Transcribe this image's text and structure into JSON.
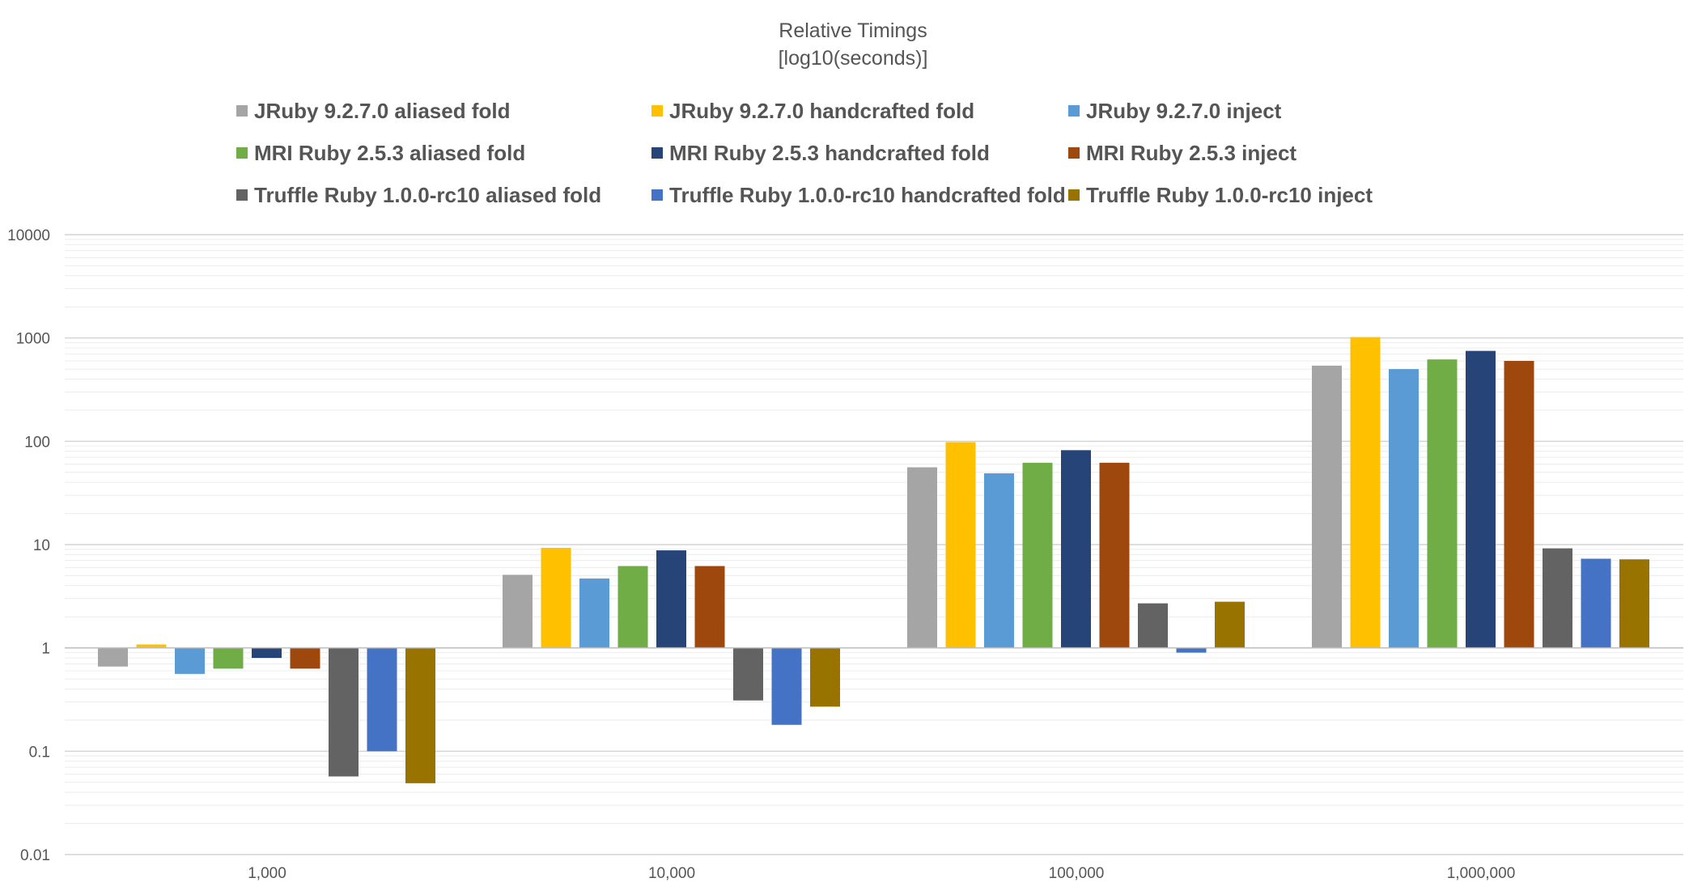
{
  "chart_data": {
    "type": "bar",
    "title": "Relative Timings",
    "subtitle": "[log10(seconds)]",
    "xlabel": "",
    "ylabel": "",
    "y_scale": "log10",
    "baseline": 1,
    "ylim": [
      0.01,
      10000
    ],
    "y_ticks": [
      "10000",
      "1000",
      "100",
      "10",
      "1",
      "0.1",
      "0.01"
    ],
    "y_tick_values": [
      10000,
      1000,
      100,
      10,
      1,
      0.1,
      0.01
    ],
    "grid": true,
    "legend_position": "top",
    "categories": [
      "1,000",
      "10,000",
      "100,000",
      "1,000,000"
    ],
    "series": [
      {
        "name": "JRuby 9.2.7.0 aliased fold",
        "color": "#a5a5a5",
        "values": [
          0.66,
          5.1,
          56,
          540
        ]
      },
      {
        "name": "JRuby 9.2.7.0 handcrafted fold",
        "color": "#ffc000",
        "values": [
          1.08,
          9.3,
          98,
          1020
        ]
      },
      {
        "name": "JRuby 9.2.7.0 inject",
        "color": "#5b9bd5",
        "values": [
          0.56,
          4.7,
          49,
          500
        ]
      },
      {
        "name": "MRI Ruby 2.5.3 aliased fold",
        "color": "#70ad47",
        "values": [
          0.63,
          6.2,
          62,
          620
        ]
      },
      {
        "name": "MRI Ruby 2.5.3 handcrafted fold",
        "color": "#264478",
        "values": [
          0.8,
          8.8,
          82,
          750
        ]
      },
      {
        "name": "MRI Ruby 2.5.3 inject",
        "color": "#9e480e",
        "values": [
          0.63,
          6.2,
          62,
          600
        ]
      },
      {
        "name": "Truffle Ruby 1.0.0-rc10 aliased fold",
        "color": "#636363",
        "values": [
          0.057,
          0.31,
          2.7,
          9.2
        ]
      },
      {
        "name": "Truffle Ruby 1.0.0-rc10 handcrafted fold",
        "color": "#4472c4",
        "values": [
          0.1,
          0.18,
          0.9,
          7.3
        ]
      },
      {
        "name": "Truffle Ruby 1.0.0-rc10 inject",
        "color": "#997300",
        "values": [
          0.049,
          0.27,
          2.8,
          7.2
        ]
      }
    ]
  }
}
